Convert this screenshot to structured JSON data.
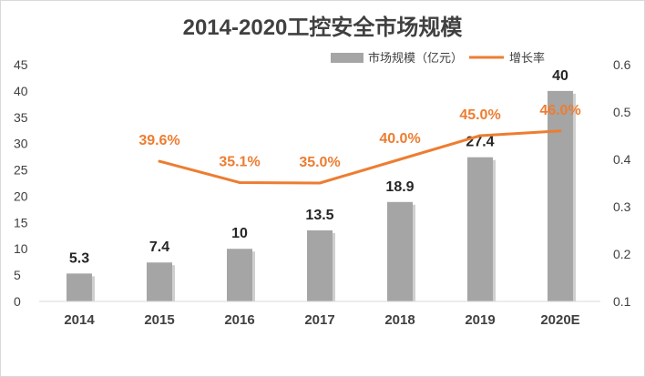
{
  "chart_data": {
    "type": "bar",
    "title": "2014-2020工控安全市场规模",
    "categories": [
      "2014",
      "2015",
      "2016",
      "2017",
      "2018",
      "2019",
      "2020E"
    ],
    "series": [
      {
        "name": "市场规模（亿元）",
        "type": "bar",
        "axis": "left",
        "values": [
          5.3,
          7.4,
          10,
          13.5,
          18.9,
          27.4,
          40
        ],
        "labels": [
          "5.3",
          "7.4",
          "10",
          "13.5",
          "18.9",
          "27.4",
          "40"
        ]
      },
      {
        "name": "增长率",
        "type": "line",
        "axis": "right",
        "values": [
          null,
          0.396,
          0.351,
          0.35,
          0.4,
          0.45,
          0.46
        ],
        "labels": [
          "",
          "39.6%",
          "35.1%",
          "35.0%",
          "40.0%",
          "45.0%",
          "46.0%"
        ]
      }
    ],
    "y_left": {
      "min": 0,
      "max": 45,
      "ticks": [
        "0",
        "5",
        "10",
        "15",
        "20",
        "25",
        "30",
        "35",
        "40",
        "45"
      ]
    },
    "y_right": {
      "min": 0.1,
      "max": 0.6,
      "ticks": [
        "0.1",
        "0.2",
        "0.3",
        "0.4",
        "0.5",
        "0.6"
      ]
    },
    "legend_position": "top-right",
    "colors": {
      "bar": "#A5A5A5",
      "line": "#ED7D31",
      "text": "#404040"
    }
  }
}
